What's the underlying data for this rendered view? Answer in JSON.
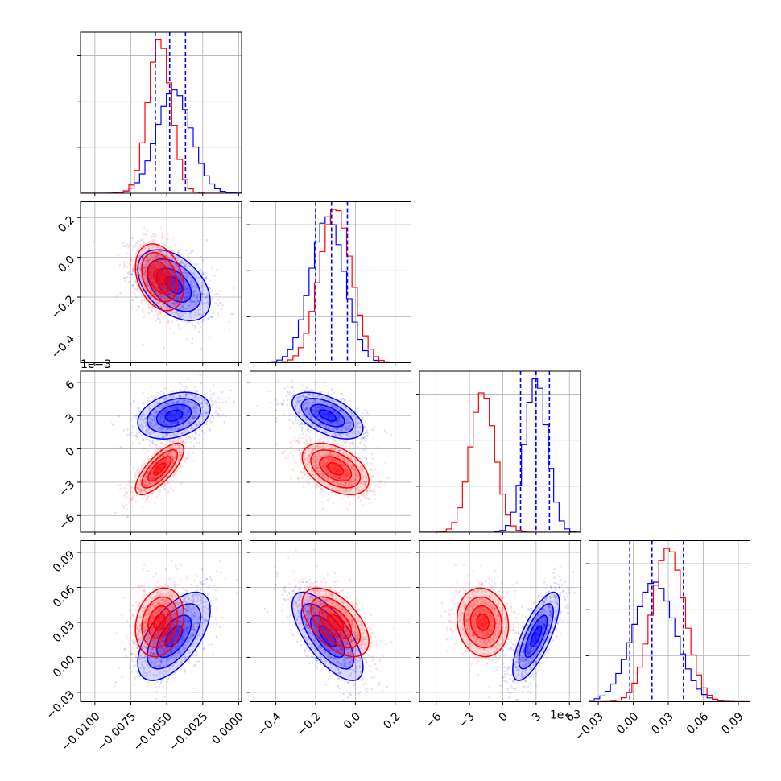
{
  "chart_data": {
    "type": "corner",
    "title": "",
    "colors": {
      "series_a": "#0000ff",
      "series_b": "#ff0000"
    },
    "grid": true,
    "parameters": [
      {
        "index": 0,
        "range": [
          -0.011,
          0.0002
        ],
        "ticks": [
          -0.01,
          -0.0075,
          -0.005,
          -0.0025,
          0.0
        ],
        "tick_labels": [
          "−0.0100",
          "−0.0075",
          "−0.0050",
          "−0.0025",
          "0.0000"
        ],
        "offset_label": ""
      },
      {
        "index": 1,
        "range": [
          -0.53,
          0.28
        ],
        "ticks": [
          -0.4,
          -0.2,
          0.0,
          0.2
        ],
        "tick_labels": [
          "−0.4",
          "−0.2",
          "0.0",
          "0.2"
        ],
        "offset_label": ""
      },
      {
        "index": 2,
        "range": [
          -7.5,
          7.0
        ],
        "ticks": [
          -6,
          -3,
          0,
          3,
          6
        ],
        "tick_labels": [
          "−6",
          "−3",
          "0",
          "3",
          "6"
        ],
        "offset_label": "1e−3"
      },
      {
        "index": 3,
        "range": [
          -0.038,
          0.1
        ],
        "ticks": [
          -0.03,
          0.0,
          0.03,
          0.06,
          0.09
        ],
        "tick_labels": [
          "−0.03",
          "0.00",
          "0.03",
          "0.06",
          "0.09"
        ],
        "offset_label": ""
      }
    ],
    "quantile_lines": [
      [
        -0.0058,
        -0.0048,
        -0.0037
      ],
      [
        -0.2,
        -0.12,
        -0.04
      ],
      [
        1.6,
        3.0,
        4.2
      ],
      [
        -0.003,
        0.016,
        0.043
      ]
    ],
    "series": [
      {
        "name": "",
        "color": "#0000ff",
        "means": [
          -0.0045,
          -0.14,
          3.0,
          0.018
        ],
        "stds": [
          0.0012,
          0.085,
          1.0,
          0.018
        ],
        "corr": [
          [
            1.0,
            -0.45,
            0.3,
            0.6
          ],
          [
            -0.45,
            1.0,
            -0.55,
            -0.7
          ],
          [
            0.3,
            -0.55,
            1.0,
            0.75
          ],
          [
            0.6,
            -0.7,
            0.75,
            1.0
          ]
        ]
      },
      {
        "name": "",
        "color": "#ff0000",
        "means": [
          -0.0055,
          -0.1,
          -1.8,
          0.03
        ],
        "stds": [
          0.0008,
          0.08,
          1.1,
          0.014
        ],
        "corr": [
          [
            1.0,
            -0.3,
            0.75,
            0.2
          ],
          [
            -0.3,
            1.0,
            -0.45,
            -0.55
          ],
          [
            0.75,
            -0.45,
            1.0,
            -0.1
          ],
          [
            0.2,
            -0.55,
            -0.1,
            1.0
          ]
        ]
      }
    ]
  }
}
